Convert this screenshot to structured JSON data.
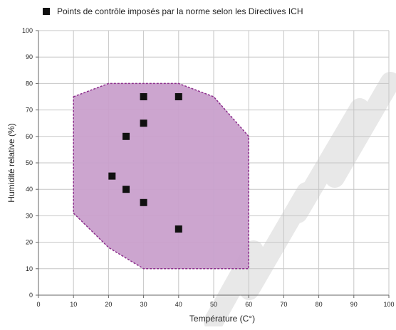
{
  "chart_data": {
    "type": "scatter",
    "title": "",
    "xlabel": "Température (C°)",
    "ylabel": "Humidité relative (%)",
    "xlim": [
      0,
      100
    ],
    "ylim": [
      0,
      100
    ],
    "xticks": [
      0,
      10,
      20,
      30,
      40,
      50,
      60,
      70,
      80,
      90,
      100
    ],
    "yticks": [
      0,
      10,
      20,
      30,
      40,
      50,
      60,
      70,
      80,
      90,
      100
    ],
    "grid": true,
    "legend": {
      "placement": "top-left",
      "entries": [
        "Points de contrôle imposés par la norme selon les Directives ICH"
      ]
    },
    "series": [
      {
        "name": "Points de contrôle imposés par la norme selon les Directives ICH",
        "marker": "square",
        "points": [
          {
            "x": 30,
            "y": 75
          },
          {
            "x": 40,
            "y": 75
          },
          {
            "x": 30,
            "y": 65
          },
          {
            "x": 25,
            "y": 60
          },
          {
            "x": 21,
            "y": 45
          },
          {
            "x": 25,
            "y": 40
          },
          {
            "x": 30,
            "y": 35
          },
          {
            "x": 40,
            "y": 25
          }
        ]
      }
    ],
    "region": {
      "points": [
        {
          "x": 10,
          "y": 75
        },
        {
          "x": 20,
          "y": 80
        },
        {
          "x": 40,
          "y": 80
        },
        {
          "x": 50,
          "y": 75
        },
        {
          "x": 60,
          "y": 60
        },
        {
          "x": 60,
          "y": 10
        },
        {
          "x": 30,
          "y": 10
        },
        {
          "x": 20,
          "y": 18
        },
        {
          "x": 10,
          "y": 31
        }
      ]
    },
    "colors": {
      "region_fill": "#c9a0cc",
      "region_stroke": "#8c2d8c",
      "marker": "#111111",
      "grid": "#c6c6c6",
      "axis": "#666666",
      "watermark": "#e8e8e8"
    }
  }
}
